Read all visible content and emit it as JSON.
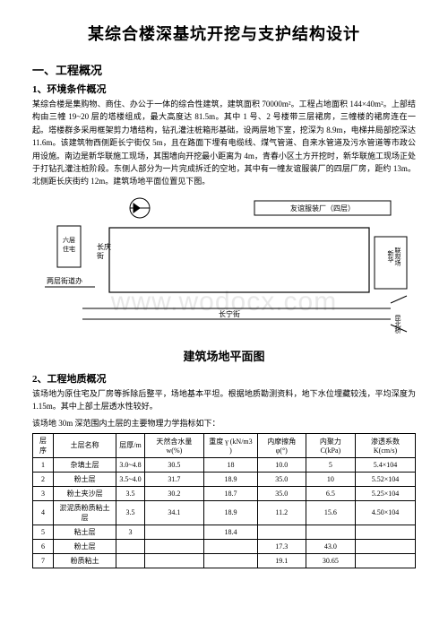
{
  "title": "某综合楼深基坑开挖与支护结构设计",
  "section1": {
    "heading": "一、工程概况"
  },
  "sub1": {
    "heading": "1、环境条件概况",
    "para": "某综合楼是集购物、商住、办公于一体的综合性建筑，建筑面积 70000m²。工程占地面积 144×40m²。上部结构由三幢 19~20 层的塔楼组成，最大高度达 81.5m。其中 1 号、2 号楼带三层裙房，三幢楼的裙房连在一起。塔楼群多采用框架剪力墙结构，钻孔灌注桩箱形基础，设两层地下室，挖深为 8.9m，电梯井局部挖深达 11.6m。该建筑物西侧距长宁街仅 5m，且在路面下埋有电缆线、煤气管道、自来水管道及污水管道等市政公用设施。南边是新华联施工现场，其围墙向开挖最小距离为 4m，青春小区土方开挖时，新华联施工现场正处于打钻孔灌注桩阶段。东侧人部分为一片完成拆迁的空地，其中有一幢友谊服装厂的四层厂房，距约 13m。北侧距长庆街约 12m。建筑场地平面位置见下图。"
  },
  "diagram": {
    "labels": {
      "northStreet": "长庆街",
      "westBldg": "六层住宅",
      "eastFactory": "友谊服装厂（四层）",
      "eastSite": "新华联现场",
      "southStreet": "长宁街",
      "leftStreet": "两层街道办",
      "bridge": "昆北桥"
    }
  },
  "caption": "建筑场地平面图",
  "sub2": {
    "heading": "2、工程地质概况",
    "para1": "该场地为原住宅及厂房等拆除后整平，场地基本平坦。根据地质勘测资料，地下水位埋藏较浅，平均深度为 1.15m。其中上部土层透水性较好。",
    "para2": "该场地 30m 深范围内土层的主要物理力学指标如下："
  },
  "table": {
    "headers": [
      "层序",
      "土层名称",
      "层厚/m",
      "天然含水量 w(%)",
      "重度 γ (kN/m3 )",
      "内摩擦角 φ(°)",
      "内聚力 C(kPa)",
      "渗透系数 K(cm/s)"
    ],
    "rows": [
      [
        "1",
        "杂填土层",
        "3.0~4.8",
        "30.5",
        "18",
        "10.0",
        "5",
        "5.4×104"
      ],
      [
        "2",
        "粉土层",
        "3.5~4.0",
        "31.7",
        "18.9",
        "35.0",
        "10",
        "5.52×104"
      ],
      [
        "3",
        "粉土夹沙层",
        "3.5",
        "30.2",
        "18.7",
        "35.0",
        "6.5",
        "5.25×104"
      ],
      [
        "4",
        "淤泥质粉质粘土层",
        "3.5",
        "34.1",
        "18.9",
        "11.2",
        "15.6",
        "4.50×104"
      ],
      [
        "5",
        "粘土层",
        "3",
        "",
        "18.4",
        "",
        "",
        ""
      ],
      [
        "6",
        "粉土层",
        "",
        "",
        "",
        "17.3",
        "43.0",
        ""
      ],
      [
        "7",
        "粉质粘土",
        "",
        "",
        "",
        "19.1",
        "30.65",
        ""
      ]
    ]
  },
  "watermark": "www.wodocx.com"
}
